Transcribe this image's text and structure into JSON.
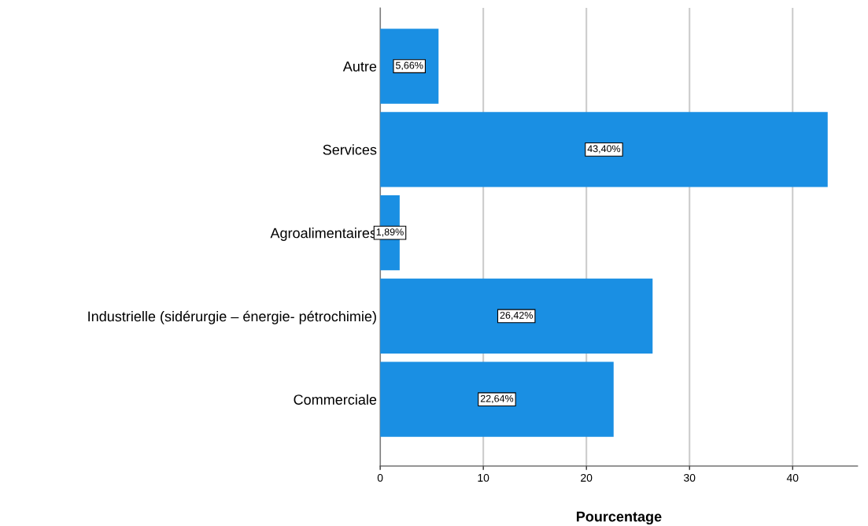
{
  "chart_data": {
    "type": "bar",
    "orientation": "horizontal",
    "xlabel": "Pourcentage",
    "categories": [
      "Autre",
      "Services",
      "Agroalimentaires",
      "Industrielle (sidérurgie – énergie- pétrochimie)",
      "Commerciale"
    ],
    "values": [
      5.66,
      43.4,
      1.89,
      26.42,
      22.64
    ],
    "value_labels": [
      "5,66%",
      "43,40%",
      "1,89%",
      "26,42%",
      "22,64%"
    ],
    "color": "#1a8fe3",
    "xlim": [
      0,
      46.3
    ],
    "xticks": [
      0,
      10,
      20,
      30,
      40
    ],
    "grid": "x",
    "legend": false
  }
}
